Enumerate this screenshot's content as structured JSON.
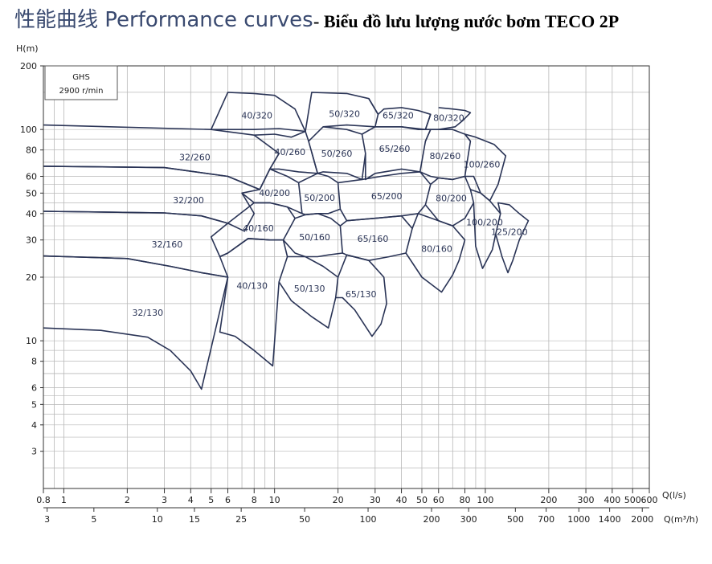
{
  "header": {
    "title_cn": "性能曲线 Performance curves",
    "title_vn": "- Biểu đồ lưu lượng nước bơm TECO 2P"
  },
  "legend": {
    "model": "GHS",
    "speed": "2900 r/min"
  },
  "chart_data": {
    "type": "line",
    "title": "性能曲线 Performance curves",
    "ylabel": "H(m)",
    "xlabel": "Q(l/s)",
    "x2label": "Q(m³/h)",
    "xscale": "log",
    "yscale": "log",
    "xlim": [
      0.8,
      600
    ],
    "ylim": [
      2,
      200
    ],
    "grid": true,
    "yticks": [
      3,
      4,
      5,
      6,
      8,
      10,
      20,
      30,
      40,
      50,
      60,
      80,
      100,
      200
    ],
    "xticks": [
      0.8,
      1,
      2,
      3,
      4,
      5,
      6,
      8,
      10,
      20,
      30,
      40,
      50,
      60,
      80,
      100,
      200,
      300,
      400,
      500,
      600
    ],
    "x2ticks": [
      3,
      5,
      10,
      15,
      25,
      50,
      100,
      200,
      300,
      500,
      700,
      1000,
      1400,
      2000
    ],
    "colors": {
      "curve": "#2a3456",
      "grid": "#b8b8b8",
      "axis": "#333333"
    },
    "series": [
      {
        "name": "32/130",
        "points": [
          [
            0.8,
            11.5
          ],
          [
            1.5,
            11.2
          ],
          [
            2.5,
            10.4
          ],
          [
            3.2,
            9.0
          ],
          [
            4.0,
            7.2
          ],
          [
            4.5,
            5.9
          ],
          [
            6.0,
            20.0
          ],
          [
            4.5,
            21.0
          ],
          [
            3.2,
            22.5
          ],
          [
            2.0,
            24.5
          ],
          [
            0.8,
            25.2
          ]
        ]
      },
      {
        "name": "32/160",
        "points": [
          [
            0.8,
            25.2
          ],
          [
            2.0,
            24.5
          ],
          [
            3.2,
            22.5
          ],
          [
            4.5,
            21.0
          ],
          [
            6.0,
            20.0
          ],
          [
            5.5,
            25.0
          ],
          [
            5.0,
            31.0
          ],
          [
            6.0,
            36.0
          ],
          [
            4.5,
            39.0
          ],
          [
            3.0,
            40.3
          ],
          [
            0.8,
            41.0
          ]
        ]
      },
      {
        "name": "32/200",
        "points": [
          [
            0.8,
            41.0
          ],
          [
            3.0,
            40.3
          ],
          [
            4.5,
            39.0
          ],
          [
            6.0,
            36.0
          ],
          [
            7.2,
            33.0
          ],
          [
            8.0,
            40.0
          ],
          [
            7.0,
            50.0
          ],
          [
            8.5,
            52.0
          ],
          [
            6.0,
            60.0
          ],
          [
            3.0,
            66.0
          ],
          [
            0.8,
            67.0
          ]
        ]
      },
      {
        "name": "32/260",
        "points": [
          [
            0.8,
            67.0
          ],
          [
            3.0,
            66.0
          ],
          [
            6.0,
            60.0
          ],
          [
            8.5,
            52.0
          ],
          [
            9.5,
            65.0
          ],
          [
            10.5,
            77.0
          ],
          [
            8.0,
            94.0
          ],
          [
            5.0,
            100.0
          ],
          [
            0.8,
            105.0
          ]
        ]
      },
      {
        "name": "40/320",
        "points": [
          [
            5.0,
            100.0
          ],
          [
            6.0,
            150.0
          ],
          [
            8.0,
            148.0
          ],
          [
            10.0,
            145.0
          ],
          [
            12.5,
            125.0
          ],
          [
            14.0,
            98.0
          ],
          [
            10.5,
            101.0
          ],
          [
            8.0,
            100.0
          ],
          [
            5.0,
            100.0
          ]
        ]
      },
      {
        "name": "40/260",
        "points": [
          [
            8.0,
            94.0
          ],
          [
            10.0,
            95.0
          ],
          [
            12.0,
            92.0
          ],
          [
            14.0,
            98.0
          ],
          [
            14.5,
            88.0
          ],
          [
            15.0,
            78.0
          ],
          [
            16.0,
            62.0
          ],
          [
            13.0,
            63.0
          ],
          [
            10.5,
            65.0
          ],
          [
            9.5,
            65.0
          ],
          [
            10.5,
            77.0
          ]
        ]
      },
      {
        "name": "40/200",
        "points": [
          [
            8.5,
            52.0
          ],
          [
            9.5,
            65.0
          ],
          [
            11.5,
            60.0
          ],
          [
            13.0,
            56.0
          ],
          [
            13.5,
            40.0
          ],
          [
            11.5,
            43.0
          ],
          [
            9.5,
            45.0
          ],
          [
            8.0,
            45.0
          ],
          [
            7.0,
            50.0
          ]
        ]
      },
      {
        "name": "40/160",
        "points": [
          [
            6.0,
            36.0
          ],
          [
            8.0,
            45.0
          ],
          [
            9.5,
            45.0
          ],
          [
            11.5,
            43.0
          ],
          [
            12.5,
            38.0
          ],
          [
            11.0,
            30.0
          ],
          [
            9.5,
            30.0
          ],
          [
            7.5,
            30.5
          ],
          [
            6.0,
            26.0
          ],
          [
            5.5,
            25.0
          ]
        ]
      },
      {
        "name": "40/130",
        "points": [
          [
            5.5,
            25.0
          ],
          [
            6.0,
            26.0
          ],
          [
            7.5,
            30.5
          ],
          [
            9.5,
            30.0
          ],
          [
            11.0,
            30.0
          ],
          [
            11.5,
            25.0
          ],
          [
            10.5,
            19.0
          ],
          [
            9.8,
            7.6
          ],
          [
            8.0,
            9.0
          ],
          [
            6.5,
            10.5
          ],
          [
            5.5,
            11.0
          ],
          [
            6.0,
            20.0
          ]
        ]
      },
      {
        "name": "50/320",
        "points": [
          [
            14.0,
            98.0
          ],
          [
            15.0,
            150.0
          ],
          [
            22.0,
            148.0
          ],
          [
            28.0,
            140.0
          ],
          [
            31.0,
            118.0
          ],
          [
            30.0,
            103.0
          ],
          [
            22.0,
            105.0
          ],
          [
            17.0,
            103.0
          ]
        ]
      },
      {
        "name": "50/260",
        "points": [
          [
            14.5,
            88.0
          ],
          [
            17.0,
            103.0
          ],
          [
            22.0,
            100.0
          ],
          [
            26.0,
            95.0
          ],
          [
            27.0,
            77.0
          ],
          [
            26.0,
            58.0
          ],
          [
            22.0,
            62.0
          ],
          [
            17.0,
            63.0
          ],
          [
            16.0,
            62.0
          ],
          [
            15.0,
            78.0
          ]
        ]
      },
      {
        "name": "50/200",
        "points": [
          [
            13.0,
            56.0
          ],
          [
            16.0,
            62.0
          ],
          [
            18.0,
            60.0
          ],
          [
            20.0,
            56.0
          ],
          [
            20.5,
            42.0
          ],
          [
            18.0,
            40.0
          ],
          [
            16.0,
            40.0
          ],
          [
            14.0,
            39.5
          ],
          [
            13.5,
            40.0
          ]
        ]
      },
      {
        "name": "50/160",
        "points": [
          [
            12.5,
            38.0
          ],
          [
            14.0,
            39.5
          ],
          [
            16.0,
            40.0
          ],
          [
            18.5,
            38.0
          ],
          [
            20.5,
            35.0
          ],
          [
            21.0,
            26.0
          ],
          [
            18.0,
            25.5
          ],
          [
            16.0,
            25.0
          ],
          [
            14.0,
            25.0
          ],
          [
            12.5,
            26.0
          ],
          [
            11.0,
            30.0
          ]
        ]
      },
      {
        "name": "50/130",
        "points": [
          [
            11.5,
            25.0
          ],
          [
            14.0,
            25.0
          ],
          [
            17.0,
            22.5
          ],
          [
            20.0,
            20.0
          ],
          [
            19.5,
            16.0
          ],
          [
            18.0,
            11.5
          ],
          [
            15.0,
            13.0
          ],
          [
            12.5,
            15.0
          ],
          [
            12.0,
            15.5
          ],
          [
            10.5,
            19.0
          ]
        ]
      },
      {
        "name": "65/320",
        "points": [
          [
            28.0,
            140.0
          ],
          [
            31.0,
            118.0
          ],
          [
            33.0,
            125.0
          ],
          [
            40.0,
            127.0
          ],
          [
            48.0,
            123.0
          ],
          [
            55.0,
            118.0
          ],
          [
            52.0,
            100.0
          ],
          [
            40.0,
            103.0
          ],
          [
            30.0,
            103.0
          ]
        ]
      },
      {
        "name": "65/260",
        "points": [
          [
            26.0,
            95.0
          ],
          [
            30.0,
            103.0
          ],
          [
            40.0,
            103.0
          ],
          [
            48.0,
            100.0
          ],
          [
            55.0,
            100.0
          ],
          [
            52.0,
            88.0
          ],
          [
            49.0,
            63.0
          ],
          [
            40.0,
            65.0
          ],
          [
            30.0,
            62.0
          ],
          [
            27.0,
            58.0
          ],
          [
            27.0,
            77.0
          ]
        ]
      },
      {
        "name": "65/200",
        "points": [
          [
            20.0,
            56.0
          ],
          [
            26.0,
            58.0
          ],
          [
            32.0,
            60.0
          ],
          [
            40.0,
            62.0
          ],
          [
            49.0,
            63.0
          ],
          [
            55.0,
            55.0
          ],
          [
            52.0,
            44.0
          ],
          [
            48.0,
            40.0
          ],
          [
            40.0,
            39.0
          ],
          [
            30.0,
            38.0
          ],
          [
            22.0,
            37.0
          ],
          [
            20.5,
            42.0
          ]
        ]
      },
      {
        "name": "65/160",
        "points": [
          [
            20.5,
            35.0
          ],
          [
            22.0,
            37.0
          ],
          [
            30.0,
            38.0
          ],
          [
            40.0,
            39.0
          ],
          [
            45.0,
            34.0
          ],
          [
            42.0,
            26.0
          ],
          [
            35.0,
            25.0
          ],
          [
            28.0,
            24.0
          ],
          [
            22.0,
            25.5
          ],
          [
            21.0,
            26.0
          ]
        ]
      },
      {
        "name": "65/130",
        "points": [
          [
            20.0,
            20.0
          ],
          [
            22.0,
            25.5
          ],
          [
            28.0,
            24.0
          ],
          [
            33.0,
            20.0
          ],
          [
            34.0,
            15.0
          ],
          [
            32.0,
            12.0
          ],
          [
            29.0,
            10.5
          ],
          [
            24.0,
            14.0
          ],
          [
            21.0,
            16.0
          ],
          [
            19.5,
            16.0
          ]
        ]
      },
      {
        "name": "80/320",
        "points": [
          [
            55.0,
            118.0
          ],
          [
            52.0,
            100.0
          ],
          [
            60.0,
            100.0
          ],
          [
            72.0,
            103.0
          ],
          [
            78.0,
            110.0
          ],
          [
            85.0,
            120.0
          ],
          [
            80.0,
            123.0
          ],
          [
            70.0,
            125.0
          ],
          [
            60.0,
            127.0
          ]
        ]
      },
      {
        "name": "80/260",
        "points": [
          [
            52.0,
            88.0
          ],
          [
            55.0,
            100.0
          ],
          [
            70.0,
            100.0
          ],
          [
            80.0,
            95.0
          ],
          [
            85.0,
            88.0
          ],
          [
            80.0,
            60.0
          ],
          [
            70.0,
            58.0
          ],
          [
            60.0,
            59.0
          ],
          [
            55.0,
            60.0
          ],
          [
            49.0,
            63.0
          ]
        ]
      },
      {
        "name": "80/200",
        "points": [
          [
            55.0,
            55.0
          ],
          [
            60.0,
            59.0
          ],
          [
            70.0,
            58.0
          ],
          [
            80.0,
            60.0
          ],
          [
            85.0,
            52.0
          ],
          [
            88.0,
            45.0
          ],
          [
            80.0,
            38.0
          ],
          [
            70.0,
            35.0
          ],
          [
            60.0,
            37.0
          ],
          [
            52.0,
            44.0
          ]
        ]
      },
      {
        "name": "80/160",
        "points": [
          [
            45.0,
            34.0
          ],
          [
            48.0,
            40.0
          ],
          [
            60.0,
            37.0
          ],
          [
            70.0,
            35.0
          ],
          [
            80.0,
            30.0
          ],
          [
            75.0,
            24.0
          ],
          [
            70.0,
            20.5
          ],
          [
            62.0,
            17.0
          ],
          [
            50.0,
            20.0
          ],
          [
            42.0,
            26.0
          ]
        ]
      },
      {
        "name": "100/260",
        "points": [
          [
            85.0,
            88.0
          ],
          [
            80.0,
            95.0
          ],
          [
            90.0,
            92.0
          ],
          [
            110.0,
            85.0
          ],
          [
            125.0,
            75.0
          ],
          [
            115.0,
            55.0
          ],
          [
            105.0,
            46.0
          ],
          [
            95.0,
            50.0
          ],
          [
            88.0,
            60.0
          ],
          [
            80.0,
            60.0
          ]
        ]
      },
      {
        "name": "100/200",
        "points": [
          [
            85.0,
            52.0
          ],
          [
            95.0,
            50.0
          ],
          [
            105.0,
            46.0
          ],
          [
            118.0,
            40.0
          ],
          [
            112.0,
            32.0
          ],
          [
            108.0,
            27.0
          ],
          [
            97.0,
            22.0
          ],
          [
            90.0,
            28.0
          ],
          [
            88.0,
            45.0
          ]
        ]
      },
      {
        "name": "125/200",
        "points": [
          [
            118.0,
            40.0
          ],
          [
            115.0,
            45.0
          ],
          [
            130.0,
            44.0
          ],
          [
            145.0,
            40.0
          ],
          [
            160.0,
            37.0
          ],
          [
            145.0,
            30.0
          ],
          [
            135.0,
            24.0
          ],
          [
            128.0,
            21.0
          ],
          [
            120.0,
            25.0
          ],
          [
            112.0,
            32.0
          ]
        ]
      }
    ]
  }
}
